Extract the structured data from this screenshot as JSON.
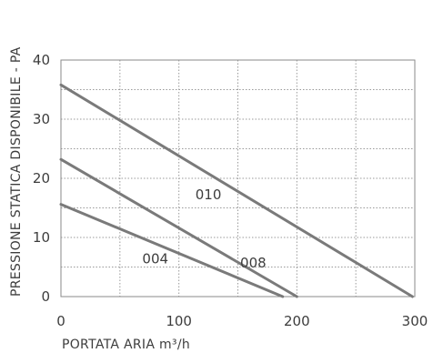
{
  "chart_data": {
    "type": "line",
    "xlabel": "PORTATA ARIA m³/h",
    "ylabel": "PRESSIONE STATICA DISPONIBILE - PA",
    "xlim": [
      0,
      300
    ],
    "ylim": [
      0,
      40
    ],
    "x_ticks": [
      "0",
      "100",
      "200",
      "300"
    ],
    "y_ticks": [
      "0",
      "10",
      "20",
      "30",
      "40"
    ],
    "grid": true,
    "series": [
      {
        "name": "010",
        "points": [
          [
            0,
            35.8
          ],
          [
            298,
            0
          ]
        ],
        "label_at": [
          125,
          16.5
        ]
      },
      {
        "name": "008",
        "points": [
          [
            0,
            23.2
          ],
          [
            200,
            0
          ]
        ],
        "label_at": [
          163,
          4.9
        ]
      },
      {
        "name": "004",
        "points": [
          [
            0,
            15.6
          ],
          [
            188,
            0
          ]
        ],
        "label_at": [
          80,
          5.6
        ]
      }
    ],
    "line_color": "#7a7a7a"
  }
}
